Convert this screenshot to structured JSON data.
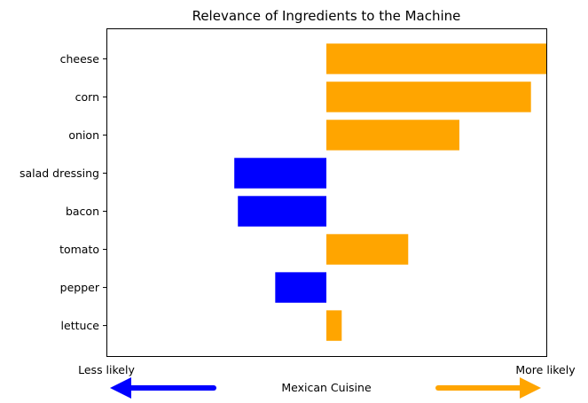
{
  "chart_data": {
    "type": "bar",
    "orientation": "horizontal",
    "title": "Relevance of Ingredients to the Machine",
    "xlabel": "Mexican Cuisine",
    "ylabel": "",
    "categories": [
      "cheese",
      "corn",
      "onion",
      "salad dressing",
      "bacon",
      "tomato",
      "pepper",
      "lettuce"
    ],
    "values": [
      0.43,
      0.4,
      0.26,
      -0.18,
      -0.173,
      0.16,
      -0.1,
      0.03
    ],
    "xlim": [
      -0.43,
      0.43
    ],
    "grid": false,
    "x_tick_labels_shown": false,
    "positive_color": "#ffa500",
    "negative_color": "#0000ff",
    "annotations": {
      "left": "Less likely",
      "right": "More likely"
    },
    "arrows": {
      "left_color": "#0000ff",
      "right_color": "#ffa500"
    }
  }
}
